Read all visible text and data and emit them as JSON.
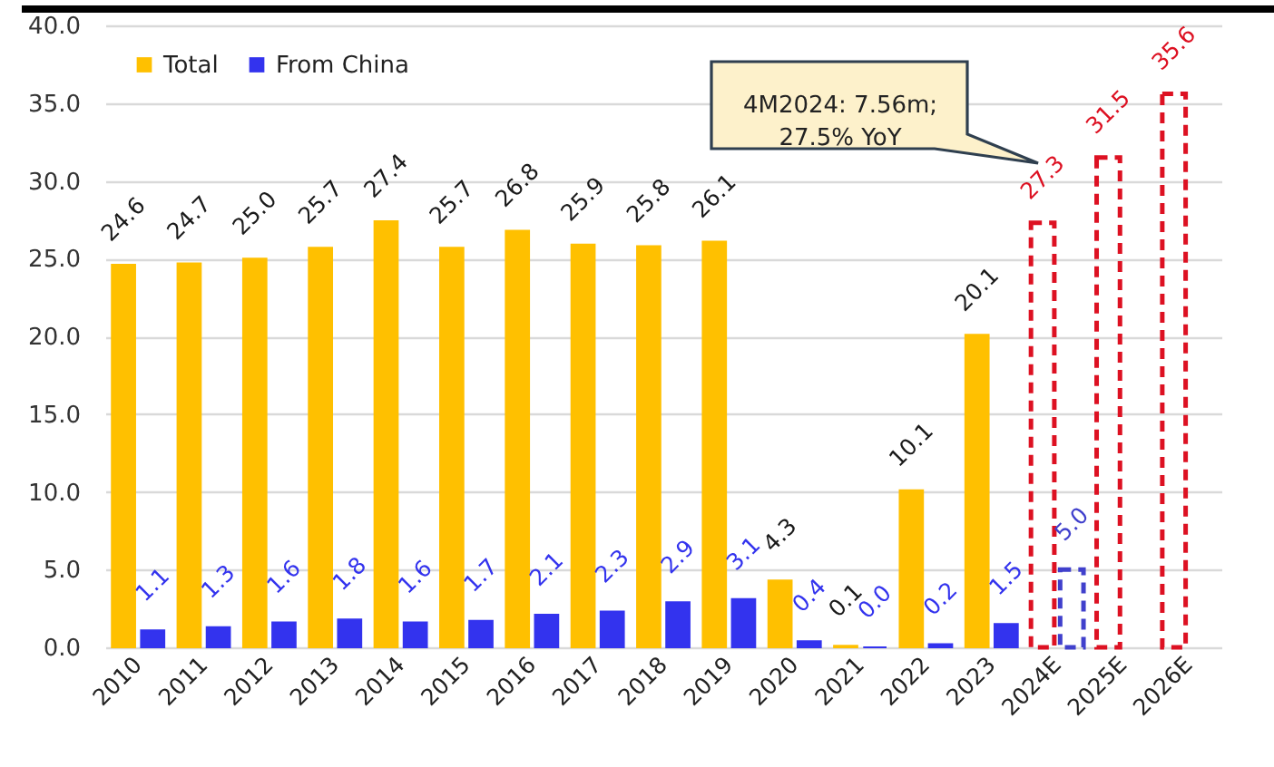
{
  "chart_data": {
    "type": "bar",
    "categories": [
      "2010",
      "2011",
      "2012",
      "2013",
      "2014",
      "2015",
      "2016",
      "2017",
      "2018",
      "2019",
      "2020",
      "2021",
      "2022",
      "2023",
      "2024E",
      "2025E",
      "2026E"
    ],
    "series": [
      {
        "name": "Total",
        "color": "#ffc000",
        "values": [
          24.6,
          24.7,
          25.0,
          25.7,
          27.4,
          25.7,
          26.8,
          25.9,
          25.8,
          26.1,
          4.3,
          0.1,
          10.1,
          20.1,
          null,
          null,
          null
        ],
        "value_labels": [
          "24.6",
          "24.7",
          "25.0",
          "25.7",
          "27.4",
          "25.7",
          "26.8",
          "25.9",
          "25.8",
          "26.1",
          "4.3",
          "0.1",
          "10.1",
          "20.1",
          null,
          null,
          null
        ]
      },
      {
        "color": "#dd1122",
        "line_style": "dashed",
        "values": [
          null,
          null,
          null,
          null,
          null,
          null,
          null,
          null,
          null,
          null,
          null,
          null,
          null,
          null,
          27.3,
          31.5,
          35.6
        ],
        "value_labels": [
          null,
          null,
          null,
          null,
          null,
          null,
          null,
          null,
          null,
          null,
          null,
          null,
          null,
          null,
          "27.3",
          "31.5",
          "35.6"
        ]
      },
      {
        "name": "From China",
        "color": "#3333ee",
        "values": [
          1.1,
          1.3,
          1.6,
          1.8,
          1.6,
          1.7,
          2.1,
          2.3,
          2.9,
          3.1,
          0.4,
          0.0,
          0.2,
          1.5,
          null,
          null,
          null
        ],
        "value_labels": [
          "1.1",
          "1.3",
          "1.6",
          "1.8",
          "1.6",
          "1.7",
          "2.1",
          "2.3",
          "2.9",
          "3.1",
          "0.4",
          "0.0",
          "0.2",
          "1.5",
          null,
          null,
          null
        ]
      },
      {
        "color": "#4040cc",
        "line_style": "dashed",
        "values": [
          null,
          null,
          null,
          null,
          null,
          null,
          null,
          null,
          null,
          null,
          null,
          null,
          null,
          null,
          5.0,
          null,
          null
        ],
        "value_labels": [
          null,
          null,
          null,
          null,
          null,
          null,
          null,
          null,
          null,
          null,
          null,
          null,
          null,
          null,
          "5.0",
          null,
          null
        ]
      }
    ],
    "ylim": [
      0,
      40
    ],
    "yticks": [
      {
        "value": 0,
        "label": "0.0"
      },
      {
        "value": 5,
        "label": "5.0"
      },
      {
        "value": 10,
        "label": "10.0"
      },
      {
        "value": 15,
        "label": "15.0"
      },
      {
        "value": 20,
        "label": "20.0"
      },
      {
        "value": 25,
        "label": "25.0"
      },
      {
        "value": 30,
        "label": "30.0"
      },
      {
        "value": 35,
        "label": "35.0"
      },
      {
        "value": 40,
        "label": "40.0"
      }
    ],
    "grid": "y",
    "legend": "top left",
    "annotations": [
      "4M2024: 7.56m;\n27.5% YoY"
    ]
  }
}
